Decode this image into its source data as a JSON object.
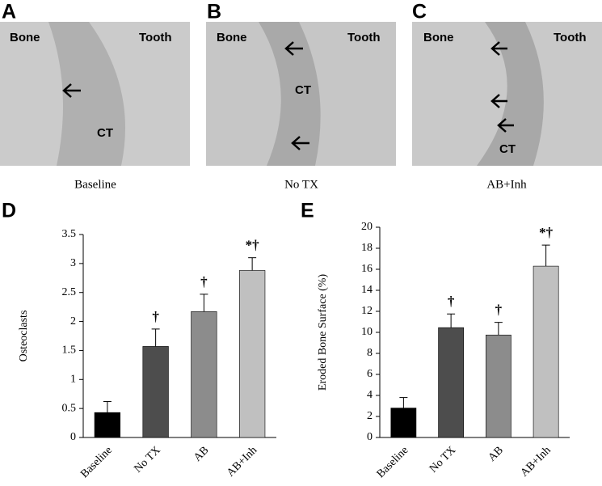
{
  "panels": [
    {
      "letter": "A",
      "labels": [
        "Bone",
        "Tooth",
        "CT"
      ],
      "caption": "Baseline"
    },
    {
      "letter": "B",
      "labels": [
        "Bone",
        "Tooth",
        "CT"
      ],
      "caption": "No TX"
    },
    {
      "letter": "C",
      "labels": [
        "Bone",
        "Tooth",
        "CT"
      ],
      "caption": "AB+Inh"
    }
  ],
  "chart_data": [
    {
      "type": "bar",
      "letter": "D",
      "y_label": "Osteoclasts",
      "categories": [
        "Baseline",
        "No TX",
        "AB",
        "AB+Inh"
      ],
      "values": [
        0.43,
        1.57,
        2.17,
        2.88
      ],
      "errors": [
        0.19,
        0.3,
        0.3,
        0.22
      ],
      "bar_labels": [
        null,
        "†",
        "†",
        "*†"
      ],
      "colors": [
        "#000000",
        "#4d4d4d",
        "#8c8c8c",
        "#c0c0c0"
      ],
      "ylim": [
        0,
        3.5
      ],
      "yticks": [
        0,
        0.5,
        1,
        1.5,
        2,
        2.5,
        3,
        3.5
      ]
    },
    {
      "type": "bar",
      "letter": "E",
      "y_label": "Eroded Bone Surface (%)",
      "categories": [
        "Baseline",
        "No TX",
        "AB",
        "AB+Inh"
      ],
      "values": [
        2.8,
        10.45,
        9.75,
        16.3
      ],
      "errors": [
        1.0,
        1.3,
        1.2,
        2.0
      ],
      "bar_labels": [
        null,
        "†",
        "†",
        "*†"
      ],
      "colors": [
        "#000000",
        "#4d4d4d",
        "#8c8c8c",
        "#c0c0c0"
      ],
      "ylim": [
        0,
        20
      ],
      "yticks": [
        0,
        2,
        4,
        6,
        8,
        10,
        12,
        14,
        16,
        18,
        20
      ]
    }
  ]
}
